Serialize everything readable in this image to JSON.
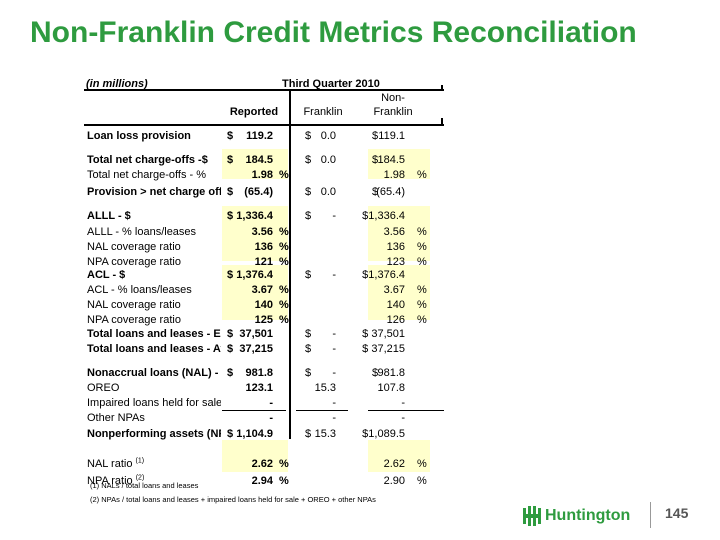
{
  "title": "Non-Franklin Credit Metrics Reconciliation",
  "table": {
    "units_label": "(in millions)",
    "period_label": "Third Quarter 2010",
    "col_reported": "Reported",
    "col_franklin": "Franklin",
    "col_nonfranklin_1": "Non-",
    "col_nonfranklin_2": "Franklin"
  },
  "rows": [
    {
      "label": "Loan loss provision",
      "rd": "$",
      "rv": "119.2",
      "rp": "",
      "fd": "$",
      "fv": "0.0",
      "nd": "$",
      "nv": "119.1",
      "np": ""
    },
    {
      "label": "Total net charge-offs -$",
      "rd": "$",
      "rv": "184.5",
      "rp": "",
      "fd": "$",
      "fv": "0.0",
      "nd": "$",
      "nv": "184.5",
      "np": ""
    },
    {
      "label": "Total net charge-offs - %",
      "rd": "",
      "rv": "1.98",
      "rp": "%",
      "fd": "",
      "fv": "",
      "nd": "",
      "nv": "1.98",
      "np": "%"
    },
    {
      "label": "Provision > net charge offs",
      "rd": "$",
      "rv": "(65.4)",
      "rp": "",
      "fd": "$",
      "fv": "0.0",
      "nd": "$",
      "nv": "(65.4)",
      "np": ""
    },
    {
      "label": "ALLL - $",
      "rd": "$",
      "rv": "1,336.4",
      "rp": "",
      "fd": "$",
      "fv": "-",
      "nd": "",
      "nv": "$1,336.4",
      "np": ""
    },
    {
      "label": "ALLL - % loans/leases",
      "rd": "",
      "rv": "3.56",
      "rp": "%",
      "fd": "",
      "fv": "",
      "nd": "",
      "nv": "3.56",
      "np": "%"
    },
    {
      "label": "NAL coverage ratio",
      "rd": "",
      "rv": "136",
      "rp": "%",
      "fd": "",
      "fv": "",
      "nd": "",
      "nv": "136",
      "np": "%"
    },
    {
      "label": "NPA coverage ratio",
      "rd": "",
      "rv": "121",
      "rp": "%",
      "fd": "",
      "fv": "",
      "nd": "",
      "nv": "123",
      "np": "%"
    },
    {
      "label": "ACL - $",
      "rd": "$",
      "rv": "1,376.4",
      "rp": "",
      "fd": "$",
      "fv": "-",
      "nd": "",
      "nv": "$1,376.4",
      "np": ""
    },
    {
      "label": "ACL - % loans/leases",
      "rd": "",
      "rv": "3.67",
      "rp": "%",
      "fd": "",
      "fv": "",
      "nd": "",
      "nv": "3.67",
      "np": "%"
    },
    {
      "label": "NAL coverage ratio",
      "rd": "",
      "rv": "140",
      "rp": "%",
      "fd": "",
      "fv": "",
      "nd": "",
      "nv": "140",
      "np": "%"
    },
    {
      "label": "NPA coverage ratio",
      "rd": "",
      "rv": "125",
      "rp": "%",
      "fd": "",
      "fv": "",
      "nd": "",
      "nv": "126",
      "np": "%"
    },
    {
      "label": "Total loans and leases - EOP",
      "rd": "$",
      "rv": "37,501",
      "rp": "",
      "fd": "$",
      "fv": "-",
      "nd": "",
      "nv": "$ 37,501",
      "np": ""
    },
    {
      "label": "Total loans and leases - Avg",
      "rd": "$",
      "rv": "37,215",
      "rp": "",
      "fd": "$",
      "fv": "-",
      "nd": "",
      "nv": "$ 37,215",
      "np": ""
    },
    {
      "label": "Nonaccrual loans (NAL) - EOP",
      "rd": "$",
      "rv": "981.8",
      "rp": "",
      "fd": "$",
      "fv": "-",
      "nd": "$",
      "nv": "981.8",
      "np": ""
    },
    {
      "label": "OREO",
      "rd": "",
      "rv": "123.1",
      "rp": "",
      "fd": "",
      "fv": "15.3",
      "nd": "",
      "nv": "107.8",
      "np": ""
    },
    {
      "label": "Impaired loans held for sale",
      "rd": "",
      "rv": "-",
      "rp": "",
      "fd": "",
      "fv": "-",
      "nd": "",
      "nv": "-",
      "np": ""
    },
    {
      "label": "Other NPAs",
      "rd": "",
      "rv": "-",
      "rp": "",
      "fd": "",
      "fv": "-",
      "nd": "",
      "nv": "-",
      "np": ""
    },
    {
      "label": "Nonperforming assets (NPA)",
      "rd": "$",
      "rv": "1,104.9",
      "rp": "",
      "fd": "$",
      "fv": "15.3",
      "nd": "",
      "nv": "$1,089.5",
      "np": ""
    },
    {
      "label": "NAL ratio",
      "sup": "(1)",
      "rd": "",
      "rv": "2.62",
      "rp": "%",
      "fd": "",
      "fv": "",
      "nd": "",
      "nv": "2.62",
      "np": "%"
    },
    {
      "label": "NPA ratio",
      "sup": "(2)",
      "rd": "",
      "rv": "2.94",
      "rp": "%",
      "fd": "",
      "fv": "",
      "nd": "",
      "nv": "2.90",
      "np": "%"
    }
  ],
  "footnotes": [
    "(1) NALs / total loans and leases",
    "(2) NPAs / total loans and leases + impaired loans held for sale + OREO + other NPAs"
  ],
  "brand": "Huntington",
  "page_number": "145"
}
